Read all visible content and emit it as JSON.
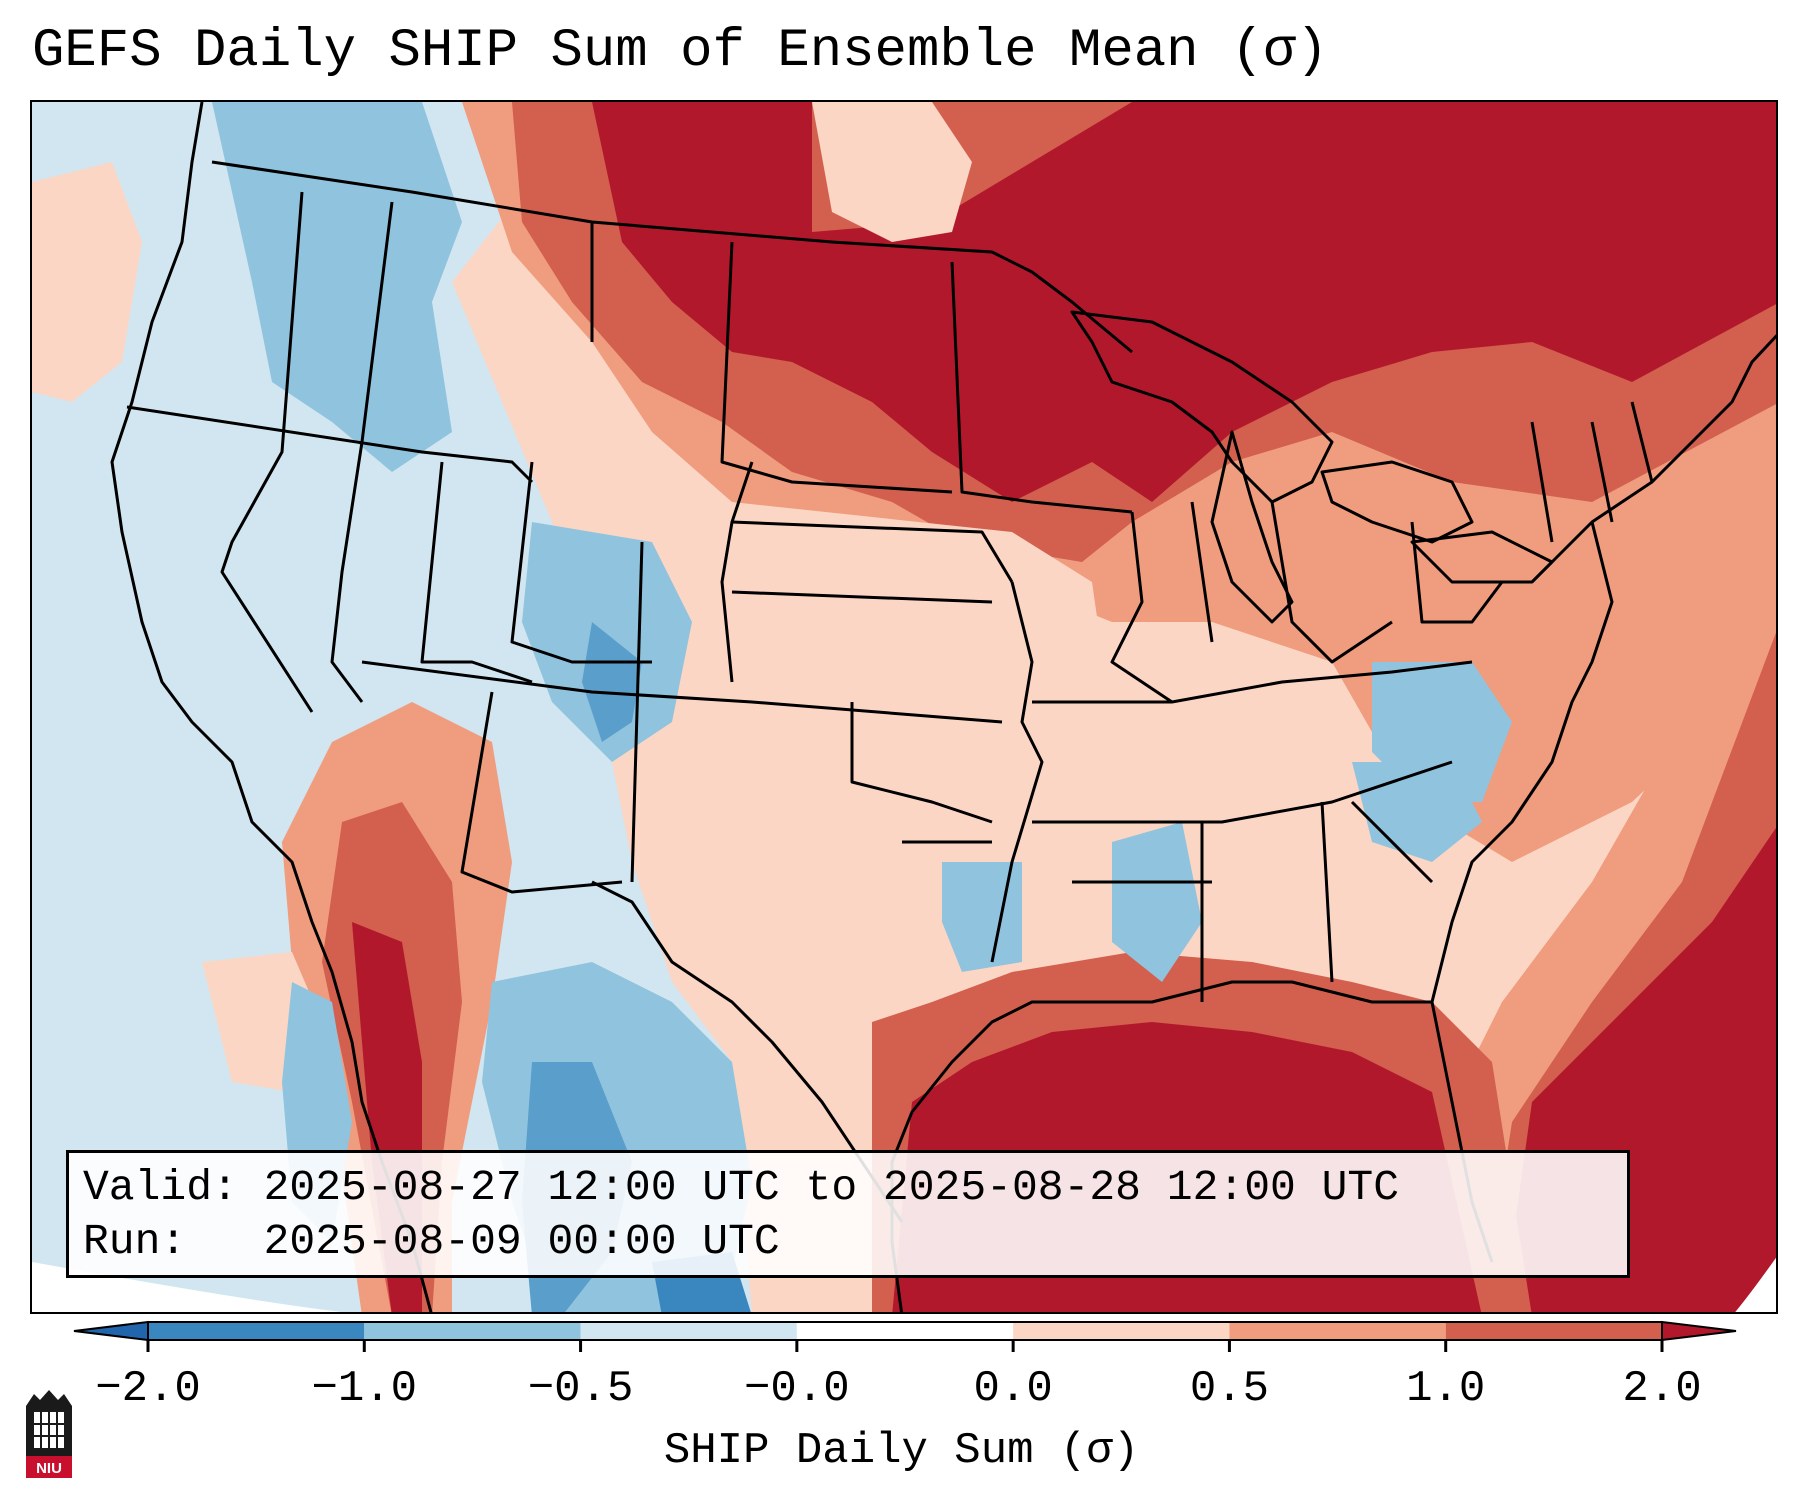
{
  "title": "GEFS Daily SHIP Sum of Ensemble Mean (σ)",
  "info_box": {
    "valid_line": "Valid: 2025-08-27 12:00 UTC to 2025-08-28 12:00 UTC",
    "run_line": "Run:   2025-08-09 00:00 UTC"
  },
  "colorbar": {
    "label": "SHIP Daily Sum (σ)",
    "ticks": [
      "−2.0",
      "−1.0",
      "−0.5",
      "−0.0",
      "0.0",
      "0.5",
      "1.0",
      "2.0"
    ],
    "bin_colors": [
      "#3a87c0",
      "#90c3de",
      "#d1e6f0",
      "#ffffff",
      "#fcd6c4",
      "#f09c7e",
      "#d35f4f",
      "#b2182b"
    ],
    "extend_low_color": "#2166ac",
    "extend_high_color": "#b2182b"
  },
  "logo": {
    "text": "NIU",
    "icon": "niu-logo-icon"
  }
}
